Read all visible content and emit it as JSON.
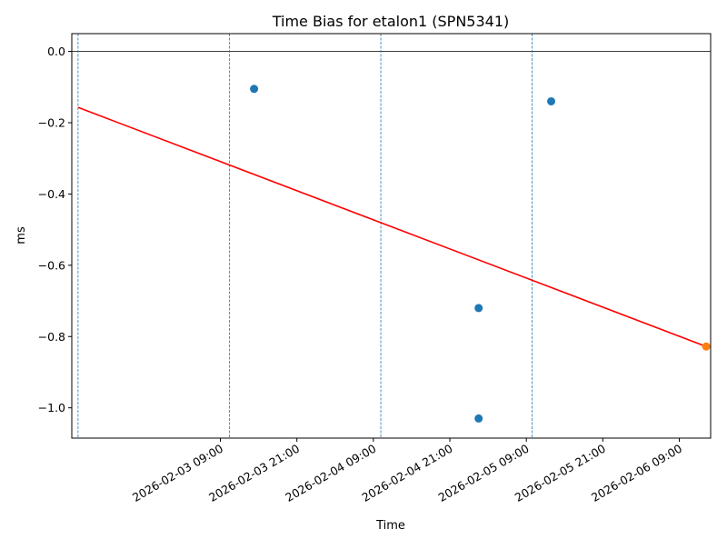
{
  "chart_data": {
    "type": "scatter",
    "title": "Time Bias for etalon1 (SPN5341)",
    "xlabel": "Time",
    "ylabel": "ms",
    "x_is_datetime": true,
    "xlim": [
      "2026-02-02T09:41:00",
      "2026-02-06T13:55:00"
    ],
    "ylim": [
      -1.085,
      0.05
    ],
    "x_ticks": [
      {
        "value": "2026-02-03T09:00:00",
        "label": "2026-02-03 09:00"
      },
      {
        "value": "2026-02-03T21:00:00",
        "label": "2026-02-03 21:00"
      },
      {
        "value": "2026-02-04T09:00:00",
        "label": "2026-02-04 09:00"
      },
      {
        "value": "2026-02-04T21:00:00",
        "label": "2026-02-04 21:00"
      },
      {
        "value": "2026-02-05T09:00:00",
        "label": "2026-02-05 09:00"
      },
      {
        "value": "2026-02-05T21:00:00",
        "label": "2026-02-05 21:00"
      },
      {
        "value": "2026-02-06T09:00:00",
        "label": "2026-02-06 09:00"
      }
    ],
    "y_ticks": [
      {
        "value": 0.0,
        "label": "0.0"
      },
      {
        "value": -0.2,
        "label": "−0.2"
      },
      {
        "value": -0.4,
        "label": "−0.4"
      },
      {
        "value": -0.6,
        "label": "−0.6"
      },
      {
        "value": -0.8,
        "label": "−0.8"
      },
      {
        "value": -1.0,
        "label": "−1.0"
      }
    ],
    "zero_line": 0.0,
    "vertical_lines": [
      "2026-02-02T10:40:00",
      "2026-02-03T10:25:00",
      "2026-02-04T10:10:00",
      "2026-02-05T09:55:00"
    ],
    "series": [
      {
        "type": "scatter",
        "color": "#1f77b4",
        "points": [
          {
            "x": "2026-02-03T14:17:00",
            "y": -0.105
          },
          {
            "x": "2026-02-05T01:31:00",
            "y": -0.72
          },
          {
            "x": "2026-02-05T01:31:00",
            "y": -1.03
          },
          {
            "x": "2026-02-05T12:54:00",
            "y": -0.14
          }
        ]
      },
      {
        "type": "line",
        "color": "#ff0000",
        "points": [
          {
            "x": "2026-02-02T10:40:00",
            "y": -0.157
          },
          {
            "x": "2026-02-06T13:13:00",
            "y": -0.828
          }
        ]
      },
      {
        "type": "scatter",
        "color": "#ff7f0e",
        "points": [
          {
            "x": "2026-02-06T13:13:00",
            "y": -0.828
          }
        ]
      }
    ],
    "grid": false,
    "legend": "none"
  }
}
